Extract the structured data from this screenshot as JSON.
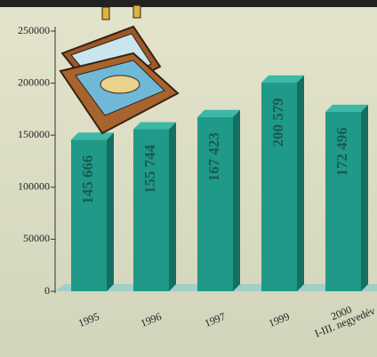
{
  "chart_data": {
    "type": "bar",
    "categories": [
      "1995",
      "1996",
      "1997",
      "1999",
      "2000\nI-III. negyedév"
    ],
    "values": [
      145666,
      155744,
      167423,
      200579,
      172496
    ],
    "value_labels": [
      "145 666",
      "155 744",
      "167 423",
      "200 579",
      "172 496"
    ],
    "color": "#1f9a88",
    "ylim": [
      0,
      250000
    ],
    "yticks": [
      0,
      50000,
      100000,
      150000,
      200000,
      250000
    ]
  }
}
